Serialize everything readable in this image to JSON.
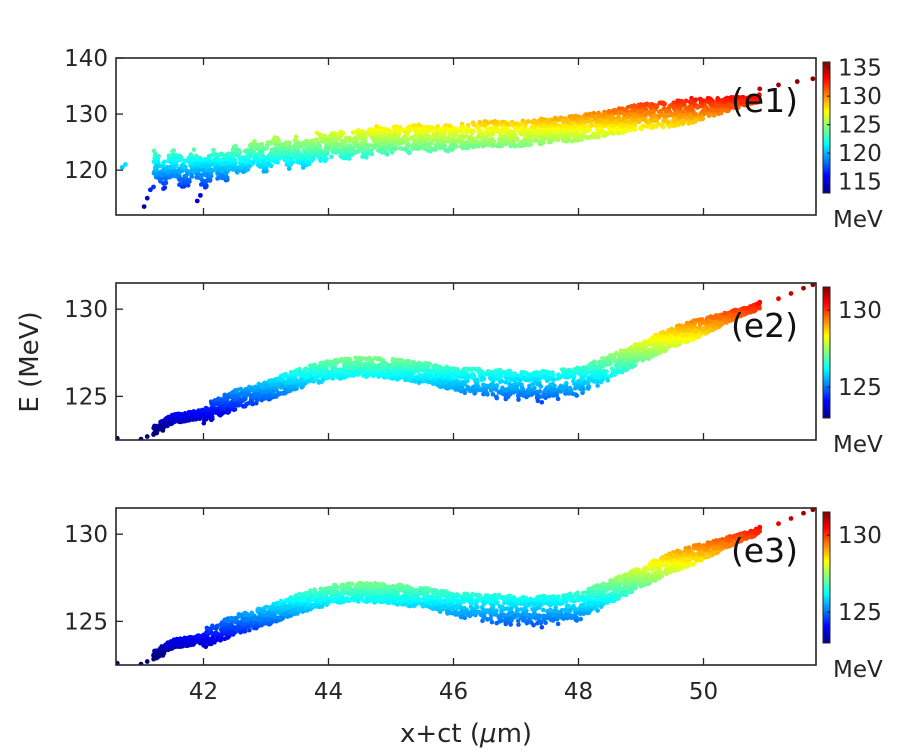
{
  "chart_data": {
    "type": "scatter",
    "shared": {
      "xlabel_prefix": "x+ct (",
      "xlabel_mu": "μ",
      "xlabel_suffix": "m)",
      "ylabel": "E (MeV)",
      "xlim": [
        40.6,
        51.8
      ],
      "xticks": [
        42,
        44,
        46,
        48,
        50
      ],
      "colormap": "jet"
    },
    "panels": [
      {
        "label": "(e1)",
        "ylim": [
          112,
          140
        ],
        "yticks": [
          120,
          130,
          140
        ],
        "colorbar": {
          "range": [
            113,
            136
          ],
          "ticks": [
            115,
            120,
            125,
            130,
            135
          ],
          "unit": "MeV"
        },
        "spine_x": [
          40.6,
          41.4,
          42.0,
          42.5,
          43.0,
          43.5,
          44.0,
          44.5,
          45.0,
          45.5,
          46.0,
          46.5,
          47.0,
          47.5,
          48.0,
          48.5,
          49.0,
          49.5,
          50.0,
          50.5,
          51.0
        ],
        "spine_y": [
          121.0,
          122.0,
          121.5,
          122.5,
          124.0,
          124.0,
          125.0,
          125.5,
          126.0,
          126.0,
          126.0,
          126.5,
          126.5,
          127.0,
          127.5,
          128.5,
          129.5,
          130.0,
          131.0,
          132.0,
          133.0
        ],
        "spread": 4.5,
        "oscillation": {
          "amplitude": 3.2,
          "period": 0.65,
          "decay_start": 41.2,
          "decay_end": 46.0
        },
        "head_points": [
          [
            51.2,
            135.2
          ],
          [
            51.5,
            135.8
          ],
          [
            51.75,
            136.3
          ],
          [
            50.9,
            134.5
          ]
        ],
        "tail_points": [
          [
            41.05,
            113.5
          ],
          [
            41.1,
            115.0
          ],
          [
            41.15,
            116.5
          ],
          [
            41.2,
            117.0
          ],
          [
            40.7,
            120.5
          ],
          [
            40.75,
            121.0
          ],
          [
            41.9,
            114.5
          ],
          [
            41.95,
            115.5
          ]
        ]
      },
      {
        "label": "(e2)",
        "ylim": [
          122.5,
          131.5
        ],
        "yticks": [
          125,
          130
        ],
        "colorbar": {
          "range": [
            123,
            131.5
          ],
          "ticks": [
            125,
            130
          ],
          "unit": "MeV"
        },
        "spine_x": [
          40.6,
          41.0,
          41.5,
          42.0,
          42.5,
          43.0,
          43.5,
          44.0,
          44.5,
          45.0,
          45.5,
          46.0,
          46.5,
          47.0,
          47.5,
          48.0,
          48.5,
          49.0,
          49.5,
          50.0,
          50.5,
          51.0
        ],
        "spine_y": [
          122.5,
          122.6,
          123.7,
          124.0,
          124.8,
          125.3,
          126.0,
          126.5,
          126.7,
          126.6,
          126.4,
          126.1,
          126.0,
          125.9,
          125.9,
          126.1,
          126.8,
          127.6,
          128.4,
          129.0,
          129.7,
          130.3
        ],
        "spread": 1.1,
        "dip": {
          "center": 47.3,
          "width": 1.4,
          "depth": 0.7
        },
        "head_points": [
          [
            51.2,
            130.6
          ],
          [
            51.4,
            130.9
          ],
          [
            51.6,
            131.2
          ],
          [
            51.75,
            131.4
          ],
          [
            50.9,
            130.4
          ]
        ],
        "tail_points": [
          [
            40.62,
            122.6
          ],
          [
            41.0,
            122.55
          ],
          [
            41.1,
            122.7
          ],
          [
            41.25,
            122.9
          ],
          [
            41.35,
            123.05
          ]
        ]
      },
      {
        "label": "(e3)",
        "ylim": [
          122.5,
          131.5
        ],
        "yticks": [
          125,
          130
        ],
        "colorbar": {
          "range": [
            123,
            131.5
          ],
          "ticks": [
            125,
            130
          ],
          "unit": "MeV"
        },
        "spine_x": [
          40.6,
          41.0,
          41.5,
          42.0,
          42.5,
          43.0,
          43.5,
          44.0,
          44.5,
          45.0,
          45.5,
          46.0,
          46.5,
          47.0,
          47.5,
          48.0,
          48.5,
          49.0,
          49.5,
          50.0,
          50.5,
          51.0
        ],
        "spine_y": [
          122.5,
          122.6,
          123.7,
          124.0,
          124.8,
          125.3,
          126.0,
          126.5,
          126.7,
          126.6,
          126.4,
          126.1,
          126.0,
          125.9,
          125.9,
          126.1,
          126.8,
          127.6,
          128.4,
          129.0,
          129.7,
          130.3
        ],
        "spread": 1.1,
        "dip": {
          "center": 47.3,
          "width": 1.4,
          "depth": 0.7
        },
        "head_points": [
          [
            51.2,
            130.6
          ],
          [
            51.4,
            130.9
          ],
          [
            51.6,
            131.2
          ],
          [
            51.75,
            131.4
          ],
          [
            50.9,
            130.4
          ]
        ],
        "tail_points": [
          [
            40.62,
            122.6
          ],
          [
            41.0,
            122.55
          ],
          [
            41.1,
            122.7
          ],
          [
            41.25,
            122.9
          ],
          [
            41.35,
            123.05
          ]
        ]
      }
    ]
  }
}
